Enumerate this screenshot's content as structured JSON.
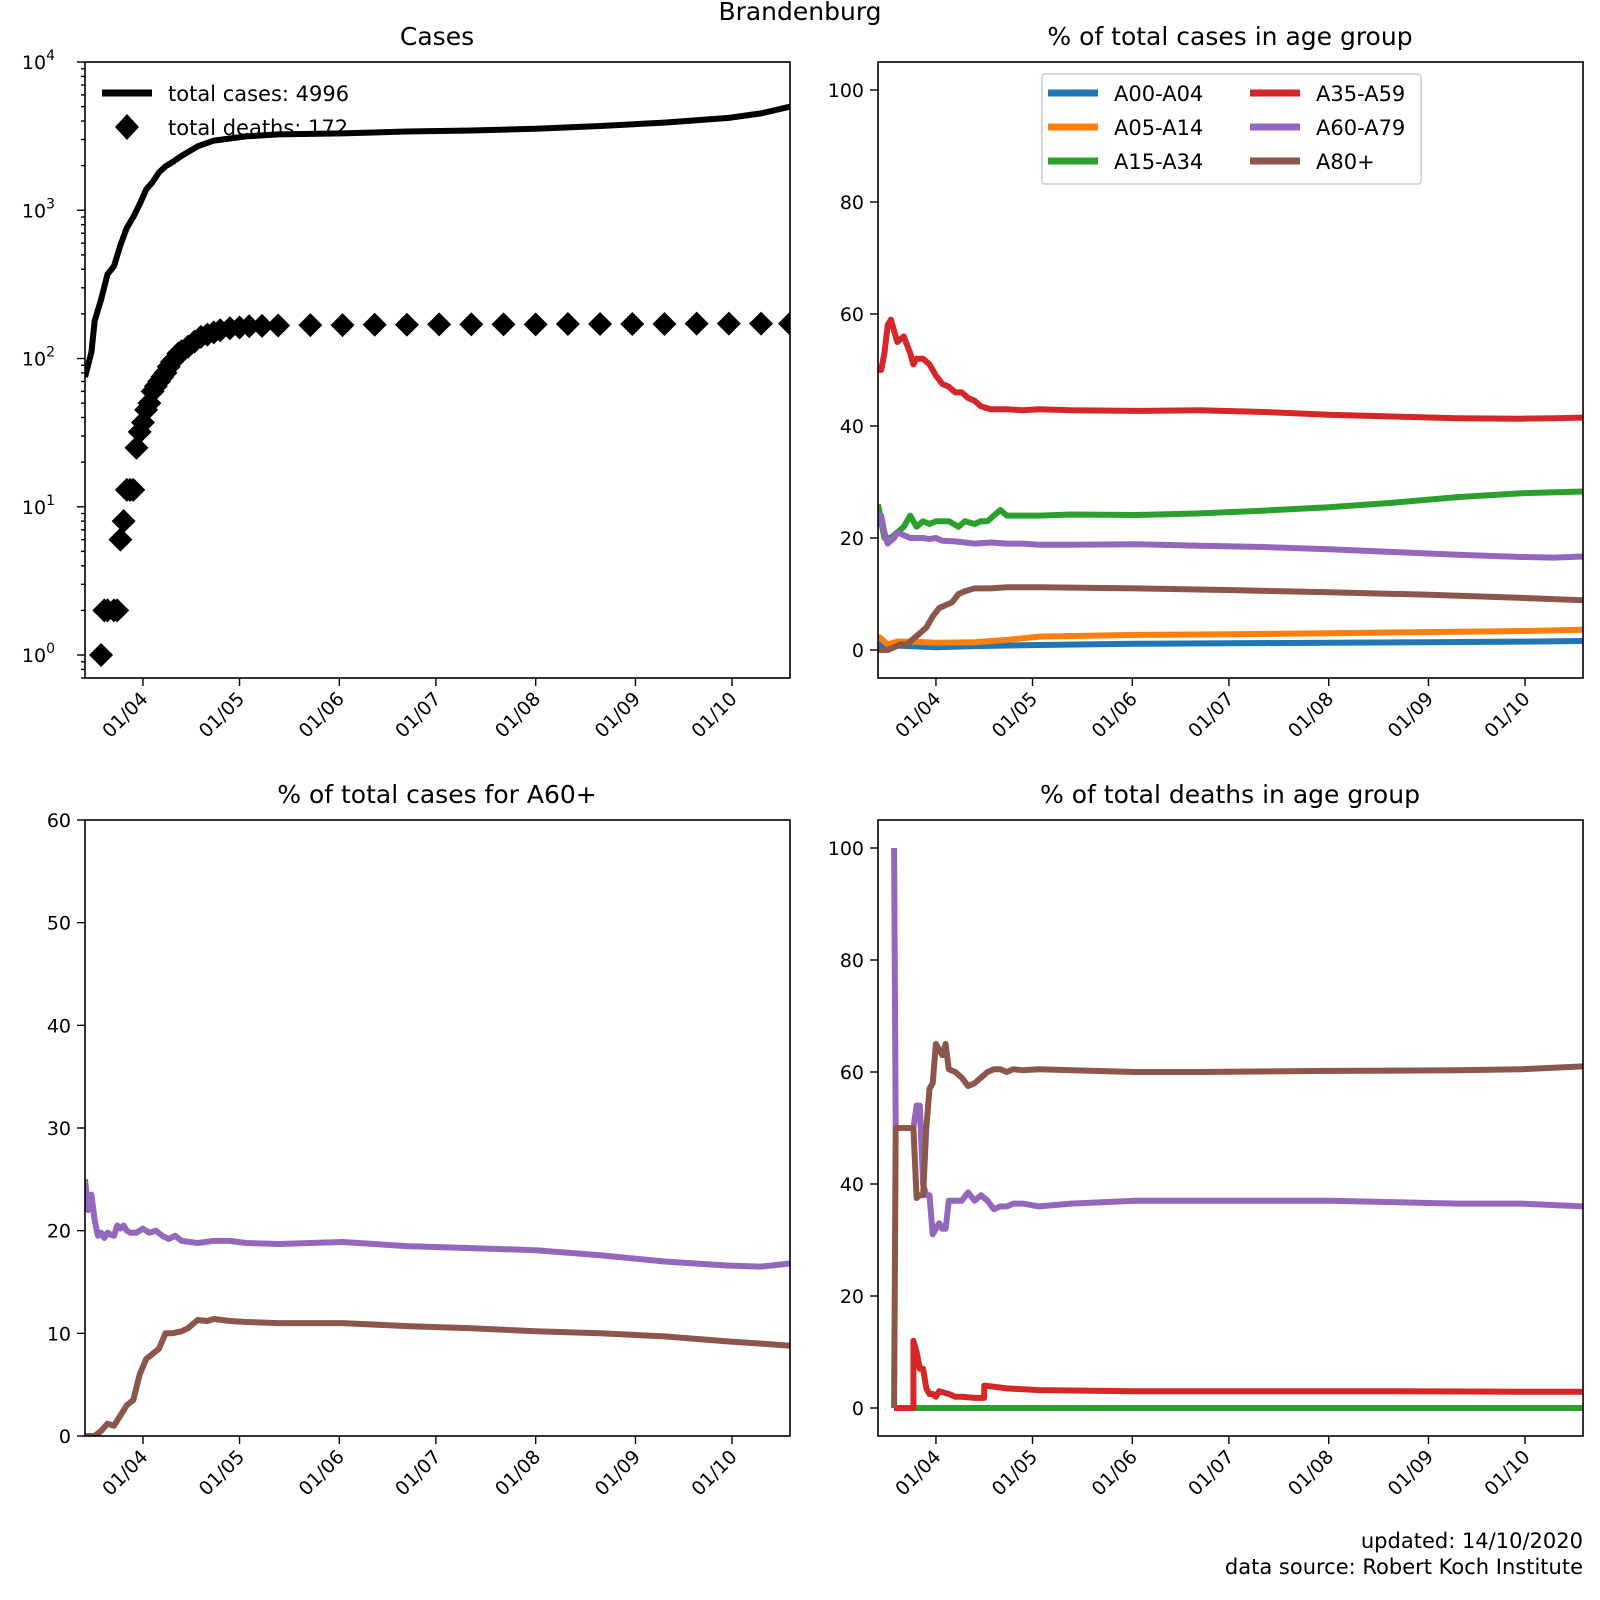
{
  "suptitle": "Brandenburg",
  "footer": {
    "updated": "updated: 14/10/2020",
    "source": "data source: Robert Koch Institute"
  },
  "colors": {
    "A00-A04": "#1f77b4",
    "A05-A14": "#ff7f0e",
    "A15-A34": "#2ca02c",
    "A35-A59": "#d62728",
    "A60-A79": "#9467bd",
    "A80+": "#8c564b",
    "total": "#000000"
  },
  "chart_data": [
    {
      "id": "cases",
      "type": "line",
      "title": "Cases",
      "yscale": "log",
      "ylim": [
        0.7,
        10000
      ],
      "xlim": [
        0,
        219
      ],
      "ytick_labels": [
        "10^0",
        "10^1",
        "10^2",
        "10^3",
        "10^4"
      ],
      "xticks": [
        18,
        48,
        79,
        109,
        140,
        171,
        201
      ],
      "xtick_labels": [
        "01/04",
        "01/05",
        "01/06",
        "01/07",
        "01/08",
        "01/09",
        "01/10"
      ],
      "legend": [
        "total cases: 4996",
        "total deaths: 172"
      ],
      "series": [
        {
          "name": "total cases",
          "style": "line",
          "x": [
            0,
            2,
            3,
            5,
            7,
            9,
            11,
            13,
            15,
            17,
            19,
            21,
            23,
            25,
            27,
            29,
            31,
            35,
            40,
            45,
            50,
            60,
            80,
            100,
            120,
            140,
            160,
            180,
            200,
            210,
            219
          ],
          "y": [
            75,
            110,
            180,
            250,
            370,
            420,
            580,
            760,
            900,
            1100,
            1380,
            1550,
            1800,
            1980,
            2100,
            2250,
            2400,
            2700,
            2950,
            3050,
            3150,
            3250,
            3300,
            3400,
            3450,
            3550,
            3700,
            3900,
            4200,
            4500,
            4996
          ]
        },
        {
          "name": "total deaths",
          "style": "marker",
          "x": [
            5,
            6,
            7,
            9,
            10,
            11,
            12,
            13,
            14,
            15,
            16,
            17,
            18,
            19,
            20,
            21,
            22,
            23,
            24,
            25,
            26,
            27,
            28,
            29,
            30,
            32,
            34,
            36,
            38,
            40,
            42,
            45,
            48,
            51,
            55,
            60,
            70,
            80,
            90,
            100,
            110,
            120,
            130,
            140,
            150,
            160,
            170,
            180,
            190,
            200,
            210,
            219
          ],
          "y": [
            1,
            2,
            2,
            2,
            2,
            6,
            8,
            13,
            13,
            13,
            25,
            32,
            37,
            45,
            50,
            60,
            65,
            70,
            75,
            80,
            88,
            95,
            100,
            108,
            112,
            120,
            130,
            140,
            145,
            150,
            155,
            160,
            162,
            165,
            166,
            167,
            168,
            168,
            169,
            169,
            170,
            170,
            170,
            170,
            171,
            171,
            171,
            171,
            172,
            172,
            172,
            172
          ]
        }
      ]
    },
    {
      "id": "cases_age",
      "type": "line",
      "title": "% of total cases in age group",
      "ylim": [
        -5,
        105
      ],
      "yticks": [
        0,
        20,
        40,
        60,
        80,
        100
      ],
      "xlim": [
        0,
        219
      ],
      "xticks": [
        18,
        48,
        79,
        109,
        140,
        171,
        201
      ],
      "xtick_labels": [
        "01/04",
        "01/05",
        "01/06",
        "01/07",
        "01/08",
        "01/09",
        "01/10"
      ],
      "legend_position": "top-center",
      "series": [
        {
          "name": "A00-A04",
          "x": [
            0,
            5,
            10,
            18,
            30,
            50,
            80,
            110,
            140,
            170,
            200,
            219
          ],
          "y": [
            1,
            0.8,
            0.7,
            0.5,
            0.7,
            0.9,
            1.1,
            1.2,
            1.3,
            1.4,
            1.5,
            1.6
          ]
        },
        {
          "name": "A05-A14",
          "x": [
            0,
            3,
            6,
            10,
            18,
            30,
            40,
            50,
            80,
            110,
            140,
            170,
            200,
            219
          ],
          "y": [
            2.5,
            1,
            1.5,
            1.5,
            1.3,
            1.4,
            1.8,
            2.4,
            2.7,
            2.8,
            3,
            3.2,
            3.4,
            3.6
          ]
        },
        {
          "name": "A15-A34",
          "x": [
            0,
            2,
            4,
            6,
            8,
            10,
            12,
            14,
            16,
            18,
            22,
            25,
            27,
            30,
            32,
            34,
            36,
            38,
            40,
            45,
            50,
            60,
            80,
            100,
            120,
            140,
            160,
            180,
            200,
            219
          ],
          "y": [
            26,
            20,
            20,
            21,
            22,
            24,
            22,
            23,
            22.5,
            23,
            23,
            22,
            23,
            22.5,
            23,
            23,
            24,
            25,
            24,
            24,
            24,
            24.2,
            24.1,
            24.4,
            24.9,
            25.5,
            26.3,
            27.3,
            28,
            28.3
          ]
        },
        {
          "name": "A35-A59",
          "x": [
            0,
            1,
            2,
            3,
            4,
            5,
            6,
            8,
            10,
            11,
            12,
            14,
            16,
            18,
            20,
            22,
            24,
            26,
            28,
            30,
            32,
            35,
            40,
            45,
            50,
            60,
            80,
            100,
            120,
            140,
            160,
            180,
            200,
            210,
            219
          ],
          "y": [
            50,
            50,
            53,
            58,
            59,
            57,
            55,
            56,
            53,
            51,
            52,
            52,
            51,
            49,
            47.5,
            47,
            46,
            46,
            45,
            44.5,
            43.5,
            43,
            43,
            42.8,
            43,
            42.8,
            42.7,
            42.8,
            42.5,
            42,
            41.7,
            41.4,
            41.3,
            41.4,
            41.5
          ]
        },
        {
          "name": "A60-A79",
          "x": [
            0,
            1,
            2,
            3,
            4,
            5,
            6,
            8,
            10,
            12,
            14,
            16,
            18,
            20,
            24,
            30,
            35,
            40,
            45,
            50,
            60,
            80,
            100,
            120,
            140,
            160,
            180,
            200,
            210,
            219
          ],
          "y": [
            22,
            24,
            21,
            19,
            19.5,
            20,
            21,
            20.5,
            20,
            20,
            20,
            19.8,
            20,
            19.5,
            19.4,
            19,
            19.2,
            19,
            19,
            18.8,
            18.8,
            18.9,
            18.6,
            18.4,
            18,
            17.5,
            17,
            16.6,
            16.5,
            16.7
          ]
        },
        {
          "name": "A80+",
          "x": [
            0,
            3,
            5,
            7,
            9,
            11,
            13,
            15,
            17,
            19,
            21,
            23,
            25,
            27,
            30,
            35,
            40,
            50,
            80,
            110,
            140,
            170,
            200,
            219
          ],
          "y": [
            0,
            0,
            0.5,
            1,
            1,
            2,
            3,
            4,
            6,
            7.5,
            8,
            8.5,
            10,
            10.5,
            11,
            11,
            11.2,
            11.2,
            11,
            10.7,
            10.3,
            9.9,
            9.3,
            8.9
          ]
        }
      ]
    },
    {
      "id": "a60plus",
      "type": "line",
      "title": "% of total cases for A60+",
      "ylim": [
        0,
        60
      ],
      "yticks": [
        0,
        10,
        20,
        30,
        40,
        50,
        60
      ],
      "xlim": [
        0,
        219
      ],
      "xticks": [
        18,
        48,
        79,
        109,
        140,
        171,
        201
      ],
      "xtick_labels": [
        "01/04",
        "01/05",
        "01/06",
        "01/07",
        "01/08",
        "01/09",
        "01/10"
      ],
      "series": [
        {
          "name": "A60-A79",
          "x": [
            0,
            1,
            2,
            3,
            4,
            5,
            6,
            7,
            8,
            9,
            10,
            11,
            12,
            13,
            14,
            16,
            18,
            20,
            22,
            24,
            26,
            28,
            30,
            35,
            40,
            45,
            50,
            60,
            80,
            100,
            120,
            140,
            160,
            180,
            200,
            210,
            219
          ],
          "y": [
            25,
            22,
            23.5,
            21,
            19.5,
            19.8,
            19.3,
            19.8,
            19.6,
            19.5,
            20.5,
            20.2,
            20.5,
            20,
            19.8,
            19.8,
            20.2,
            19.8,
            20,
            19.5,
            19.2,
            19.5,
            19,
            18.8,
            19,
            19,
            18.8,
            18.7,
            18.9,
            18.5,
            18.3,
            18.1,
            17.6,
            17,
            16.6,
            16.5,
            16.8
          ]
        },
        {
          "name": "A80+",
          "x": [
            0,
            3,
            5,
            7,
            9,
            11,
            13,
            15,
            17,
            19,
            21,
            23,
            25,
            27,
            30,
            32,
            35,
            38,
            40,
            45,
            50,
            60,
            80,
            100,
            120,
            140,
            160,
            180,
            200,
            210,
            219
          ],
          "y": [
            0,
            0,
            0.5,
            1.2,
            1,
            2,
            3,
            3.5,
            6,
            7.5,
            8,
            8.5,
            10,
            10,
            10.2,
            10.5,
            11.3,
            11.2,
            11.4,
            11.2,
            11.1,
            11,
            11,
            10.7,
            10.5,
            10.2,
            10,
            9.7,
            9.2,
            9,
            8.8
          ]
        }
      ]
    },
    {
      "id": "deaths_age",
      "type": "line",
      "title": "% of total deaths in age group",
      "ylim": [
        -5,
        105
      ],
      "yticks": [
        0,
        20,
        40,
        60,
        80,
        100
      ],
      "xlim": [
        0,
        219
      ],
      "xticks": [
        18,
        48,
        79,
        109,
        140,
        171,
        201
      ],
      "xtick_labels": [
        "01/04",
        "01/05",
        "01/06",
        "01/07",
        "01/08",
        "01/09",
        "01/10"
      ],
      "series": [
        {
          "name": "A15-A34",
          "x": [
            5,
            219
          ],
          "y": [
            0,
            0
          ]
        },
        {
          "name": "A35-A59",
          "x": [
            5,
            11,
            11,
            12,
            13,
            14,
            15,
            16,
            17,
            18,
            19,
            22,
            24,
            26,
            30,
            33,
            33,
            36,
            40,
            50,
            80,
            120,
            160,
            200,
            219
          ],
          "y": [
            0,
            0,
            12,
            10,
            7,
            7,
            3.5,
            2.5,
            2.5,
            2,
            3,
            2.5,
            2,
            2,
            1.8,
            1.8,
            4,
            3.8,
            3.5,
            3.2,
            3,
            3,
            3,
            2.9,
            2.9
          ]
        },
        {
          "name": "A60-A79",
          "x": [
            5,
            5.5,
            6,
            10,
            11,
            11,
            12,
            13,
            14,
            15,
            16,
            17,
            18,
            19,
            20,
            21,
            22,
            24,
            26,
            28,
            30,
            32,
            34,
            36,
            38,
            40,
            42,
            45,
            50,
            60,
            80,
            100,
            140,
            180,
            200,
            219
          ],
          "y": [
            100,
            50,
            50,
            50,
            50,
            50,
            54,
            54,
            40,
            38,
            38,
            31,
            32,
            33,
            32,
            32,
            37,
            37,
            37,
            38.5,
            37,
            38,
            37,
            35.5,
            36,
            36,
            36.5,
            36.5,
            36,
            36.5,
            37,
            37,
            37,
            36.5,
            36.5,
            36
          ]
        },
        {
          "name": "A80+",
          "x": [
            5,
            5.5,
            6,
            10,
            11,
            11,
            12,
            13,
            14,
            15,
            16,
            17,
            18,
            19,
            20,
            21,
            22,
            24,
            26,
            28,
            30,
            32,
            34,
            36,
            38,
            40,
            42,
            45,
            50,
            60,
            80,
            100,
            140,
            180,
            200,
            219
          ],
          "y": [
            0,
            50,
            50,
            50,
            50,
            50,
            37.5,
            38,
            38,
            50,
            57,
            58,
            65,
            64,
            63,
            65,
            60.5,
            60,
            59,
            57.5,
            58,
            59,
            60,
            60.5,
            60.5,
            60,
            60.5,
            60.3,
            60.5,
            60.3,
            60,
            60,
            60.2,
            60.3,
            60.5,
            61
          ]
        }
      ]
    }
  ]
}
